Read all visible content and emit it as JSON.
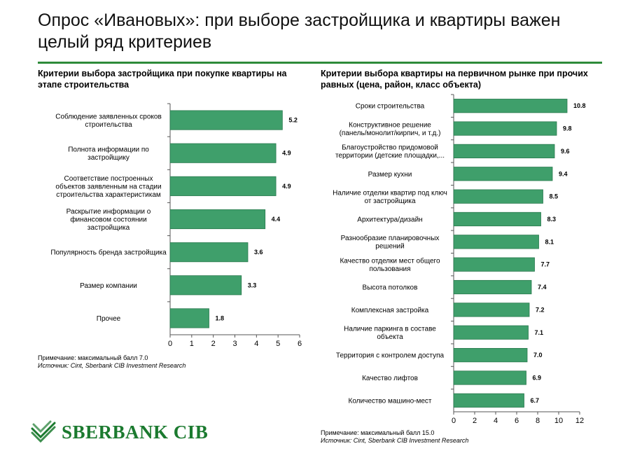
{
  "title": "Опрос «Ивановых»: при выборе застройщика и квартиры важен целый ряд критериев",
  "colors": {
    "bar": "#3f9f6b",
    "bar_stroke": "#2a7a4f",
    "rule": "#2e8b3a",
    "logo": "#1b7a2f"
  },
  "chart_data": [
    {
      "type": "bar",
      "orientation": "horizontal",
      "title": "Критерии выбора застройщика при покупке квартиры на этапе строительства",
      "categories": [
        [
          "Соблюдение заявленных сроков",
          "строительства"
        ],
        [
          "Полнота информации по",
          "застройщику"
        ],
        [
          "Соответствие построенных",
          "объектов заявленным на стадии",
          "строительства характеристикам"
        ],
        [
          "Раскрытие информации о",
          "финансовом состоянии",
          "застройщика"
        ],
        [
          "Популярность бренда застройщика"
        ],
        [
          "Размер компании"
        ],
        [
          "Прочее"
        ]
      ],
      "values": [
        5.2,
        4.9,
        4.9,
        4.4,
        3.6,
        3.3,
        1.8
      ],
      "value_labels": [
        "5.2",
        "4.9",
        "4.9",
        "4.4",
        "3.6",
        "3.3",
        "1.8"
      ],
      "xlim": [
        0,
        6
      ],
      "xticks": [
        "0",
        "1",
        "2",
        "3",
        "4",
        "5",
        "6"
      ],
      "grid": false,
      "note": "Примечание: максимальный балл 7.0",
      "source": "Источник: Cint, Sberbank CIB Investment Research"
    },
    {
      "type": "bar",
      "orientation": "horizontal",
      "title": "Критерии выбора квартиры на первичном рынке при прочих равных (цена, район, класс объекта)",
      "categories": [
        [
          "Сроки строительства"
        ],
        [
          "Конструктивное решение",
          "(панель/монолит/кирпич, и т.д.)"
        ],
        [
          "Благоустройство придомовой",
          "территории (детские площадки,..."
        ],
        [
          "Размер кухни"
        ],
        [
          "Наличие отделки квартир под ключ",
          "от застройщика"
        ],
        [
          "Архитектура/дизайн"
        ],
        [
          "Разнообразие планировочных",
          "решений"
        ],
        [
          "Качество отделки мест общего",
          "пользования"
        ],
        [
          "Высота потолков"
        ],
        [
          "Комплексная застройка"
        ],
        [
          "Наличие паркинга в составе",
          "объекта"
        ],
        [
          "Территория с контролем доступа"
        ],
        [
          "Качество лифтов"
        ],
        [
          "Количество машино-мест"
        ]
      ],
      "values": [
        10.8,
        9.8,
        9.6,
        9.4,
        8.5,
        8.3,
        8.1,
        7.7,
        7.4,
        7.2,
        7.1,
        7.0,
        6.9,
        6.7
      ],
      "value_labels": [
        "10.8",
        "9.8",
        "9.6",
        "9.4",
        "8.5",
        "8.3",
        "8.1",
        "7.7",
        "7.4",
        "7.2",
        "7.1",
        "7.0",
        "6.9",
        "6.7"
      ],
      "xlim": [
        0,
        12
      ],
      "xticks": [
        "0",
        "2",
        "4",
        "6",
        "8",
        "10",
        "12"
      ],
      "grid": false,
      "note": "Примечание: максимальный балл 15.0",
      "source": "Источник: Cint, Sberbank CIB Investment Research"
    }
  ],
  "logo": {
    "text": "SBERBANK CIB"
  }
}
